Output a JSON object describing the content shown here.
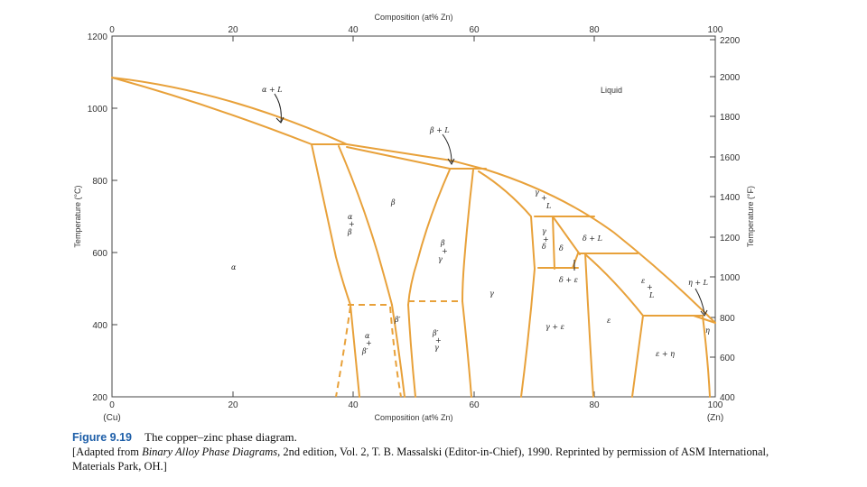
{
  "axes": {
    "top_title": "Composition (at% Zn)",
    "bottom_title": "Composition (at% Zn)",
    "left_title": "Temperature (°C)",
    "right_title": "Temperature (°F)",
    "comp_ticks": [
      "0",
      "20",
      "40",
      "60",
      "80",
      "100"
    ],
    "left_ticks": [
      "1200",
      "1000",
      "800",
      "600",
      "400",
      "200"
    ],
    "right_ticks": [
      "2200",
      "2000",
      "1800",
      "1600",
      "1400",
      "1200",
      "1000",
      "800",
      "600",
      "400"
    ],
    "bottom_end_left": "(Cu)",
    "bottom_end_right": "(Zn)"
  },
  "phases": {
    "liquid": "Liquid",
    "alpha_L": "α + L",
    "beta_L": "β + L",
    "alpha": "α",
    "beta": "β",
    "alpha_beta": [
      "α",
      "+",
      "β"
    ],
    "beta_gamma": [
      "β",
      "+",
      "γ"
    ],
    "gamma": "γ",
    "gamma_L": [
      "γ",
      "+",
      "L"
    ],
    "gamma_delta": [
      "γ",
      "+",
      "δ"
    ],
    "delta": "δ",
    "delta_L": "δ + L",
    "delta_eps": "δ + ε",
    "eps_L": [
      "ε",
      "+",
      "L"
    ],
    "eta_L": "η + L",
    "eta": "η",
    "beta_prime": "β′",
    "alpha_beta_prime": [
      "α",
      "+",
      "β′"
    ],
    "beta_prime_gamma": [
      "β′",
      "+",
      "γ"
    ],
    "gamma_eps": "γ + ε",
    "eps": "ε",
    "eps_eta": "ε + η"
  },
  "caption": {
    "figure_number": "Figure 9.19",
    "title": "The copper–zinc phase diagram.",
    "source_prefix": "[Adapted from ",
    "source_book": "Binary Alloy Phase Diagrams,",
    "source_rest": " 2nd edition, Vol. 2, T. B. Massalski (Editor-in-Chief), 1990. Reprinted by permission of ASM International, Materials Park, OH.]"
  }
}
